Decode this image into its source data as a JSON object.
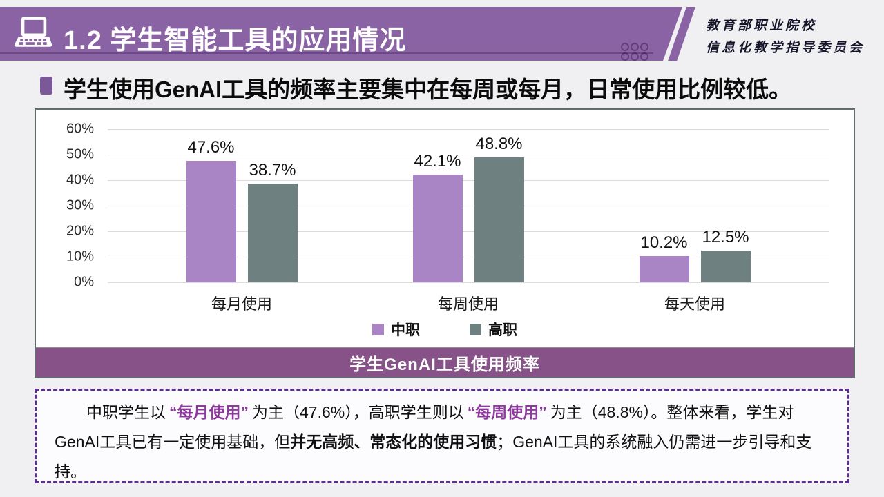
{
  "header": {
    "title": "1.2 学生智能工具的应用情况",
    "org_line1": "教育部职业院校",
    "org_line2": "信息化教学指导委员会"
  },
  "subtitle": {
    "text": "学生使用GenAI工具的频率主要集中在每周或每月，日常使用比例较低。"
  },
  "chart_data": {
    "type": "bar",
    "title": "学生GenAI工具使用频率",
    "categories": [
      "每月使用",
      "每周使用",
      "每天使用"
    ],
    "series": [
      {
        "name": "中职",
        "color": "#A985C6",
        "values": [
          47.6,
          42.1,
          10.2
        ]
      },
      {
        "name": "高职",
        "color": "#6F8080",
        "values": [
          38.7,
          48.8,
          12.5
        ]
      }
    ],
    "y_ticks": [
      "60%",
      "50%",
      "40%",
      "30%",
      "20%",
      "10%",
      "0%"
    ],
    "ylim": [
      0,
      60
    ],
    "grid": true,
    "legend_position": "bottom",
    "value_suffix": "%"
  },
  "summary": {
    "p1": "中职学生以",
    "hl1": "“每月使用”",
    "p2": "为主（47.6%），高职学生则以",
    "hl2": "“每周使用”",
    "p3": "为主（48.8%）。整体来看，学生对GenAI工具已有一定使用基础，但",
    "bold1": "并无高频、常态化的使用习惯",
    "p4": "；GenAI工具的系统融入仍需进一步引导和支持。"
  },
  "colors": {
    "header_purple": "#8A63A5",
    "band_purple": "#865287",
    "bar_purple": "#A985C6",
    "bar_gray": "#6F8080",
    "highlight_purple": "#8C3A9C",
    "dashed_border_purple": "#5C2E91",
    "bullet_purple": "#7B5898",
    "slide_background": "#f0eff1"
  }
}
